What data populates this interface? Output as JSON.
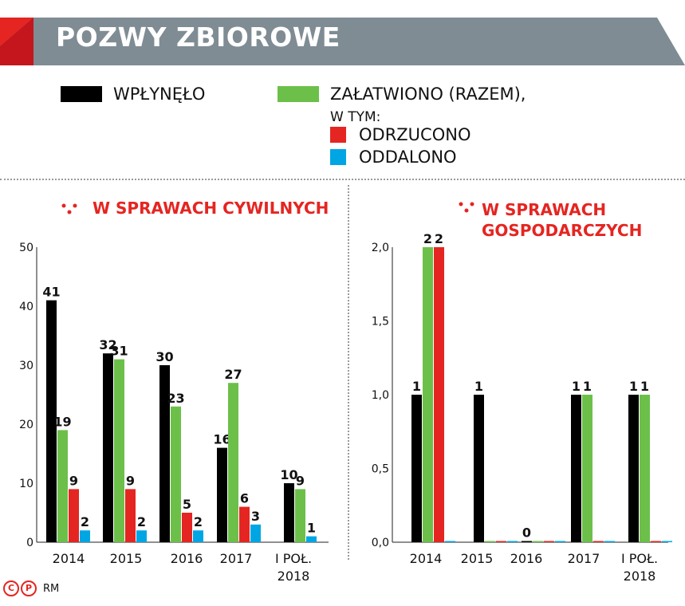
{
  "title": "POZWY ZBIOROWE",
  "legend": {
    "items": [
      {
        "key": "wplynelo",
        "label": "WPŁYNĘŁO",
        "color": "#000000"
      },
      {
        "key": "zalatwiono",
        "label": "ZAŁATWIONO (RAZEM),",
        "color": "#6cc04a"
      },
      {
        "key": "odrzucono",
        "label": "ODRZUCONO",
        "color": "#e52521"
      },
      {
        "key": "oddalono",
        "label": "ODDALONO",
        "color": "#00a6e3"
      }
    ],
    "subnote": "W TYM:"
  },
  "footer": {
    "credit": "RM",
    "icon_c": "C",
    "icon_p": "P"
  },
  "chart_data": [
    {
      "type": "bar",
      "title": "W SPRAWACH CYWILNYCH",
      "categories": [
        "2014",
        "2015",
        "2016",
        "2017",
        "I POŁ. 2018"
      ],
      "ylim": [
        0,
        50
      ],
      "yticks": [
        "0",
        "10",
        "20",
        "30",
        "40",
        "50"
      ],
      "legend_placement": "top",
      "series": [
        {
          "name": "WPŁYNĘŁO",
          "color": "#000000",
          "values": [
            41,
            32,
            30,
            16,
            10
          ],
          "labels": [
            "41",
            "32",
            "30",
            "16",
            "10"
          ]
        },
        {
          "name": "ZAŁATWIONO (RAZEM)",
          "color": "#6cc04a",
          "values": [
            19,
            31,
            23,
            27,
            9
          ],
          "labels": [
            "19",
            "31",
            "23",
            "27",
            "9"
          ]
        },
        {
          "name": "ODRZUCONO",
          "color": "#e52521",
          "values": [
            9,
            9,
            5,
            6,
            null
          ],
          "labels": [
            "9",
            "9",
            "5",
            "6",
            ""
          ]
        },
        {
          "name": "ODDALONO",
          "color": "#00a6e3",
          "values": [
            2,
            2,
            2,
            3,
            1
          ],
          "labels": [
            "2",
            "2",
            "2",
            "3",
            "1"
          ]
        }
      ]
    },
    {
      "type": "bar",
      "title": "W SPRAWACH GOSPODARCZYCH",
      "categories": [
        "2014",
        "2015",
        "2016",
        "2017",
        "I POŁ. 2018"
      ],
      "ylim": [
        0,
        2
      ],
      "yticks": [
        "0,0",
        "0,5",
        "1,0",
        "1,5",
        "2,0"
      ],
      "legend_placement": "top",
      "series": [
        {
          "name": "WPŁYNĘŁO",
          "color": "#000000",
          "values": [
            1,
            1,
            0,
            1,
            1
          ],
          "labels": [
            "1",
            "1",
            "0",
            "1",
            "1"
          ]
        },
        {
          "name": "ZAŁATWIONO (RAZEM)",
          "color": "#6cc04a",
          "values": [
            2,
            0,
            0,
            1,
            1
          ],
          "labels": [
            "2",
            "",
            "",
            "1",
            "1"
          ]
        },
        {
          "name": "ODRZUCONO",
          "color": "#e52521",
          "values": [
            2,
            0,
            0,
            0,
            0
          ],
          "labels": [
            "2",
            "",
            "",
            "",
            ""
          ]
        },
        {
          "name": "ODDALONO",
          "color": "#00a6e3",
          "values": [
            0,
            0,
            0,
            0,
            0
          ],
          "labels": [
            "",
            "",
            "",
            "",
            ""
          ]
        }
      ]
    }
  ]
}
